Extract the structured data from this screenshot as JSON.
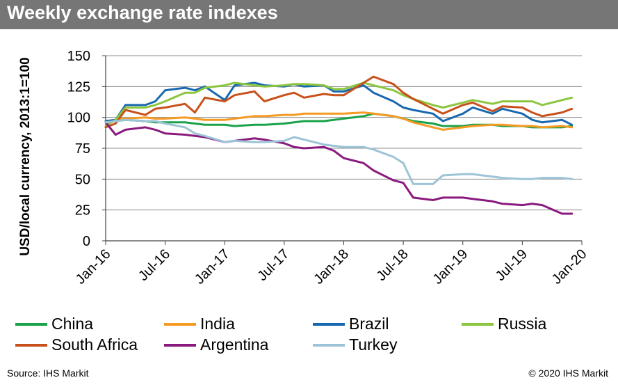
{
  "header": {
    "title": "Weekly exchange rate indexes"
  },
  "footer": {
    "source": "Source: IHS Markit",
    "copyright": "© 2020 IHS Markit"
  },
  "chart_data": {
    "type": "line",
    "title": "Weekly exchange rate indexes",
    "ylabel": "USD/local currency, 2013:1=100",
    "xlabel": "",
    "ylim": [
      0,
      150
    ],
    "yticks": [
      "0",
      "25",
      "50",
      "75",
      "100",
      "125",
      "150"
    ],
    "x_ticks": [
      "Jan-16",
      "Jul-16",
      "Jan-17",
      "Jul-17",
      "Jan-18",
      "Jul-18",
      "Jan-19",
      "Jul-19",
      "Jan-20"
    ],
    "xlim": [
      "2016-01",
      "2020-01"
    ],
    "grid": "horizontal",
    "legend_position": "bottom",
    "x": [
      "2016-01",
      "2016-02",
      "2016-03",
      "2016-05",
      "2016-06",
      "2016-07",
      "2016-09",
      "2016-10",
      "2016-11",
      "2017-01",
      "2017-02",
      "2017-04",
      "2017-05",
      "2017-07",
      "2017-08",
      "2017-09",
      "2017-11",
      "2017-12",
      "2018-01",
      "2018-03",
      "2018-04",
      "2018-06",
      "2018-07",
      "2018-08",
      "2018-10",
      "2018-11",
      "2019-01",
      "2019-02",
      "2019-04",
      "2019-05",
      "2019-07",
      "2019-08",
      "2019-09",
      "2019-11",
      "2019-12"
    ],
    "series": [
      {
        "name": "China",
        "color": "#1aa24a",
        "values": [
          96,
          97,
          98,
          97,
          96,
          96,
          96,
          95,
          94,
          94,
          93,
          94,
          94,
          95,
          96,
          97,
          97,
          98,
          99,
          101,
          103,
          101,
          99,
          97,
          95,
          93,
          93,
          94,
          94,
          93,
          93,
          92,
          92,
          92,
          93
        ]
      },
      {
        "name": "India",
        "color": "#f59a23",
        "values": [
          97,
          98,
          99,
          100,
          99,
          99,
          100,
          99,
          98,
          98,
          99,
          101,
          101,
          102,
          102,
          103,
          103,
          103,
          103,
          104,
          103,
          101,
          99,
          96,
          92,
          90,
          92,
          93,
          94,
          94,
          93,
          93,
          92,
          93,
          92
        ]
      },
      {
        "name": "Brazil",
        "color": "#1868b0",
        "values": [
          97,
          98,
          110,
          110,
          113,
          122,
          124,
          122,
          125,
          114,
          126,
          128,
          126,
          125,
          127,
          125,
          126,
          121,
          121,
          126,
          120,
          113,
          108,
          106,
          103,
          97,
          103,
          108,
          103,
          107,
          103,
          98,
          96,
          98,
          94
        ]
      },
      {
        "name": "Russia",
        "color": "#8cc63f",
        "values": [
          93,
          98,
          108,
          108,
          110,
          113,
          120,
          120,
          124,
          126,
          128,
          126,
          125,
          126,
          127,
          127,
          126,
          123,
          123,
          128,
          126,
          122,
          118,
          115,
          110,
          108,
          112,
          114,
          111,
          113,
          113,
          113,
          110,
          114,
          116
        ]
      },
      {
        "name": "South Africa",
        "color": "#c8511b",
        "values": [
          92,
          95,
          106,
          102,
          107,
          108,
          111,
          104,
          116,
          113,
          118,
          121,
          113,
          118,
          120,
          116,
          119,
          118,
          118,
          128,
          133,
          127,
          120,
          115,
          107,
          103,
          110,
          112,
          105,
          109,
          108,
          104,
          101,
          104,
          107
        ]
      },
      {
        "name": "Argentina",
        "color": "#8a1a7e",
        "values": [
          96,
          86,
          90,
          92,
          90,
          87,
          86,
          85,
          84,
          80,
          81,
          83,
          82,
          79,
          76,
          75,
          76,
          73,
          67,
          63,
          57,
          49,
          47,
          35,
          33,
          35,
          35,
          34,
          32,
          30,
          29,
          30,
          29,
          22,
          22
        ]
      },
      {
        "name": "Turkey",
        "color": "#9dc4d6",
        "values": [
          96,
          97,
          98,
          97,
          97,
          95,
          92,
          87,
          85,
          80,
          81,
          80,
          80,
          81,
          84,
          82,
          78,
          77,
          76,
          76,
          74,
          68,
          63,
          46,
          46,
          53,
          54,
          54,
          52,
          51,
          50,
          50,
          51,
          51,
          50
        ]
      }
    ]
  }
}
